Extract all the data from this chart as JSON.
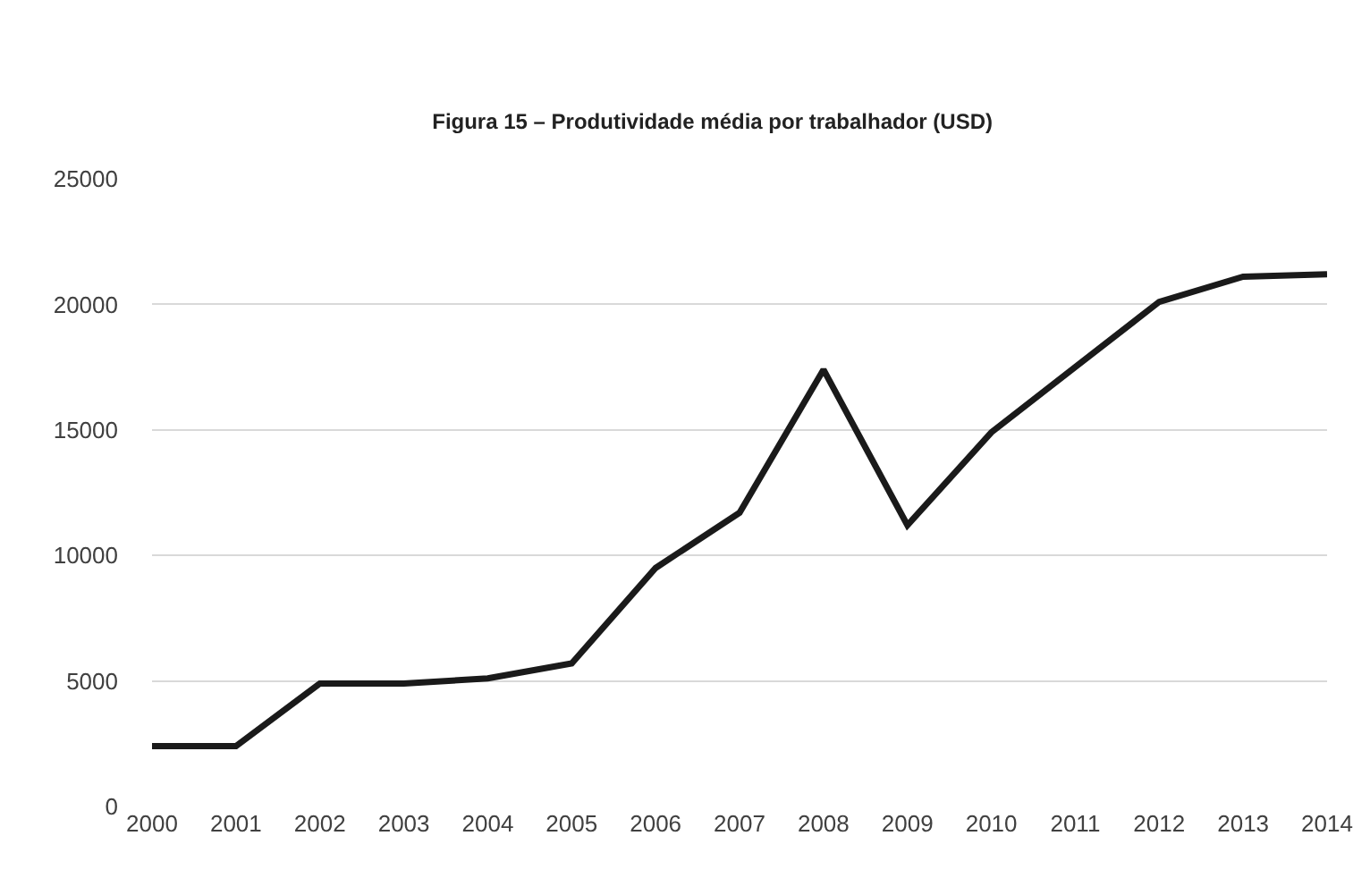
{
  "chart_data": {
    "type": "line",
    "title": "Figura 15 – Produtividade média por trabalhador (USD)",
    "categories": [
      "2000",
      "2001",
      "2002",
      "2003",
      "2004",
      "2005",
      "2006",
      "2007",
      "2008",
      "2009",
      "2010",
      "2011",
      "2012",
      "2013",
      "2014"
    ],
    "series": [
      {
        "color": "#1a1a1a",
        "values": [
          2400,
          2400,
          4900,
          4900,
          5100,
          5700,
          9500,
          11700,
          17400,
          11200,
          14900,
          17500,
          20100,
          21100,
          21200
        ]
      }
    ],
    "ylim": [
      0,
      25000
    ],
    "yticks": [
      0,
      5000,
      10000,
      15000,
      20000,
      25000
    ],
    "grid": "y",
    "marker": "none",
    "line_style": "solid"
  }
}
